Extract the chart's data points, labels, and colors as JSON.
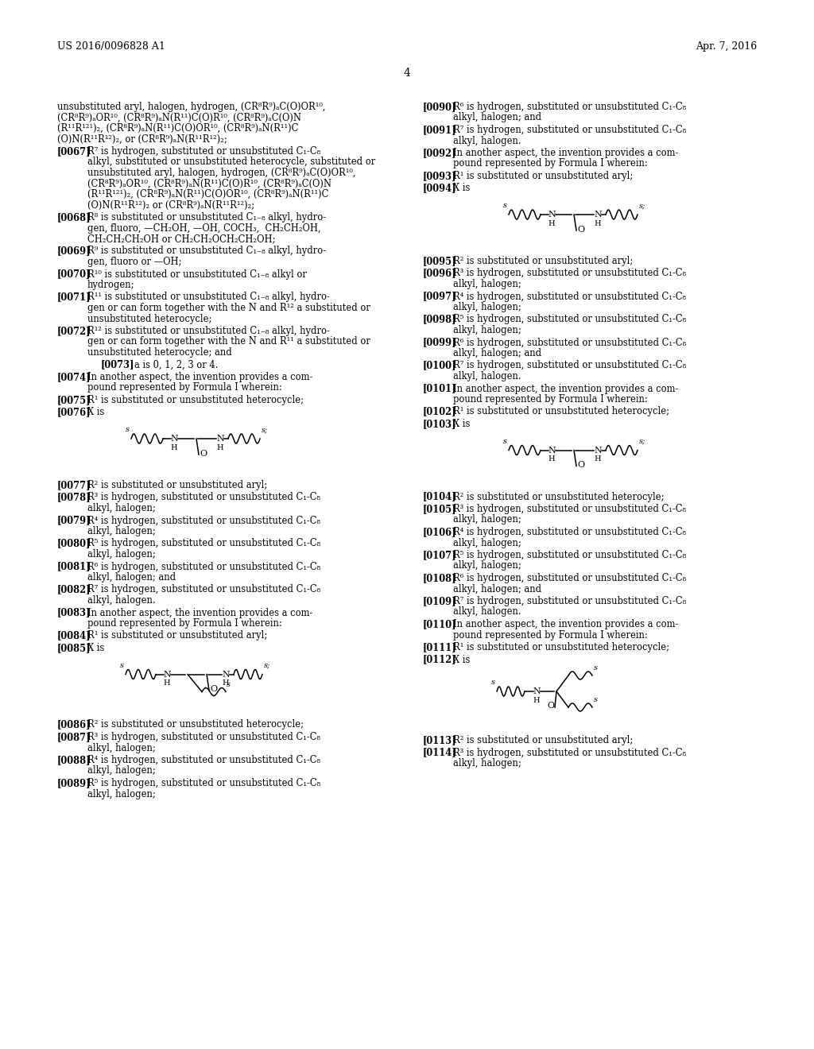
{
  "page_number": "4",
  "header_left": "US 2016/0096828 A1",
  "header_right": "Apr. 7, 2016",
  "background": "#ffffff"
}
